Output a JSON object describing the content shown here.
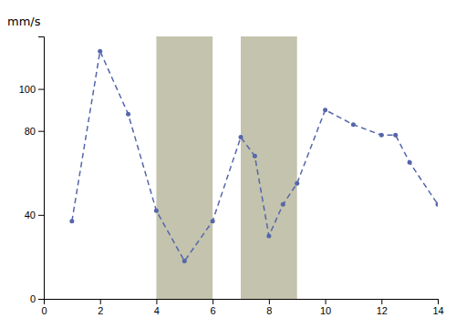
{
  "chart_data": {
    "type": "line",
    "ylabel": "mm/s",
    "x": [
      1,
      2,
      3,
      4,
      5,
      6,
      7,
      7.5,
      8,
      8.5,
      9,
      10,
      11,
      12,
      12.5,
      13,
      14
    ],
    "values": [
      37,
      118,
      88,
      42,
      18,
      37,
      77,
      68,
      30,
      45,
      55,
      90,
      83,
      78,
      78,
      65,
      45
    ],
    "color": "#5566aa",
    "line_style": "dashed",
    "marker": "circle",
    "spans": [
      {
        "x": [
          4,
          6
        ],
        "color": "#b8b8a0"
      },
      {
        "x": [
          7,
          9
        ],
        "color": "#b8b8a0"
      }
    ],
    "xlim": [
      0,
      14
    ],
    "ylim": [
      0,
      125
    ],
    "xticks": [
      0,
      2,
      4,
      6,
      8,
      10,
      12,
      14
    ],
    "yticks": [
      0,
      40,
      80,
      100
    ],
    "grid": false
  }
}
